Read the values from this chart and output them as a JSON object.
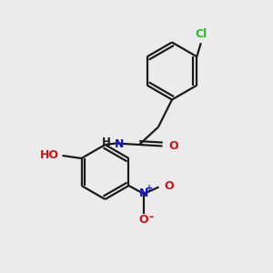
{
  "background_color": "#ebebeb",
  "bond_color": "#1a1a1a",
  "cl_color": "#2db52d",
  "n_color": "#1414cc",
  "o_color": "#cc1414",
  "figsize": [
    3.0,
    3.0
  ],
  "dpi": 100,
  "xlim": [
    0,
    10
  ],
  "ylim": [
    0,
    10
  ]
}
